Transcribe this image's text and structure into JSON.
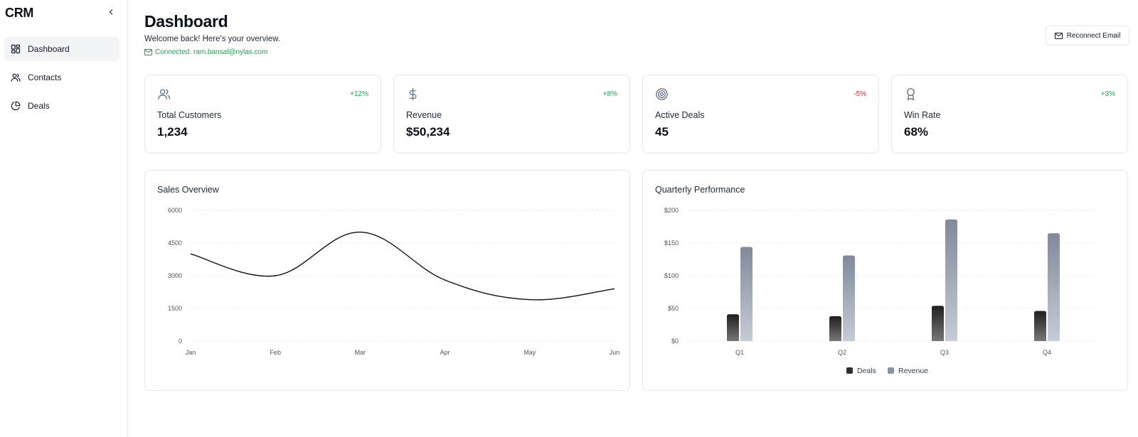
{
  "app": {
    "brand": "CRM"
  },
  "sidebar": {
    "items": [
      {
        "label": "Dashboard",
        "icon": "dashboard-icon",
        "active": true
      },
      {
        "label": "Contacts",
        "icon": "users-icon",
        "active": false
      },
      {
        "label": "Deals",
        "icon": "pie-chart-icon",
        "active": false
      }
    ]
  },
  "header": {
    "title": "Dashboard",
    "subtitle": "Welcome back! Here's your overview.",
    "connected": "Connected: ram.bansal@nylas.com",
    "reconnect_label": "Reconnect Email"
  },
  "stats": [
    {
      "label": "Total Customers",
      "value": "1,234",
      "delta": "+12%",
      "trend": "up",
      "icon": "users-icon"
    },
    {
      "label": "Revenue",
      "value": "$50,234",
      "delta": "+8%",
      "trend": "up",
      "icon": "dollar-icon"
    },
    {
      "label": "Active Deals",
      "value": "45",
      "delta": "-5%",
      "trend": "down",
      "icon": "target-icon"
    },
    {
      "label": "Win Rate",
      "value": "68%",
      "delta": "+3%",
      "trend": "up",
      "icon": "award-icon"
    }
  ],
  "colors": {
    "positive": "#16a34a",
    "negative": "#dc2626",
    "deals_bar": "#2f2f2f",
    "revenue_bar": "#8a94a6",
    "line": "#111111"
  },
  "chart_data": [
    {
      "type": "line",
      "title": "Sales Overview",
      "categories": [
        "Jan",
        "Feb",
        "Mar",
        "Apr",
        "May",
        "Jun"
      ],
      "series": [
        {
          "values": [
            4000,
            3000,
            5000,
            2800,
            1900,
            2400
          ]
        }
      ],
      "ylim": [
        0,
        6000
      ],
      "yticks": [
        "0",
        "1500",
        "3000",
        "4500",
        "6000"
      ],
      "grid": true,
      "smooth": true
    },
    {
      "type": "bar",
      "title": "Quarterly Performance",
      "categories": [
        "Q1",
        "Q2",
        "Q3",
        "Q4"
      ],
      "series": [
        {
          "name": "Deals",
          "values": [
            41,
            38,
            54,
            46
          ]
        },
        {
          "name": "Revenue",
          "values": [
            144,
            131,
            186,
            165
          ]
        }
      ],
      "ylim": [
        0,
        200
      ],
      "yticks": [
        "$0",
        "$50",
        "$100",
        "$150",
        "$200"
      ],
      "grid": true,
      "legend": "bottom"
    }
  ]
}
